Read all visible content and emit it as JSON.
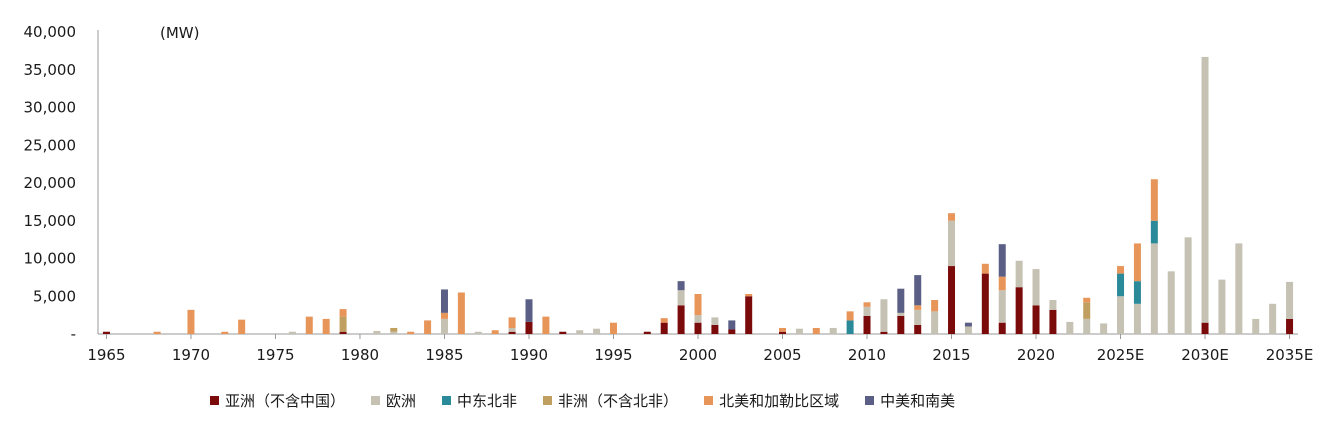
{
  "chart_data": {
    "type": "bar",
    "stacked": true,
    "unit_label": "(MW)",
    "ylim": [
      0,
      40000
    ],
    "y_ticks": [
      0,
      5000,
      10000,
      15000,
      20000,
      25000,
      30000,
      35000,
      40000
    ],
    "y_tick_labels": [
      "-",
      "5,000",
      "10,000",
      "15,000",
      "20,000",
      "25,000",
      "30,000",
      "35,000",
      "40,000"
    ],
    "x_tick_labels": [
      {
        "index": 0,
        "label": "1965"
      },
      {
        "index": 5,
        "label": "1970"
      },
      {
        "index": 10,
        "label": "1975"
      },
      {
        "index": 15,
        "label": "1980"
      },
      {
        "index": 20,
        "label": "1985"
      },
      {
        "index": 25,
        "label": "1990"
      },
      {
        "index": 30,
        "label": "1995"
      },
      {
        "index": 35,
        "label": "2000"
      },
      {
        "index": 40,
        "label": "2005"
      },
      {
        "index": 45,
        "label": "2010"
      },
      {
        "index": 50,
        "label": "2015"
      },
      {
        "index": 55,
        "label": "2020"
      },
      {
        "index": 60,
        "label": "2025E"
      },
      {
        "index": 65,
        "label": "2030E"
      },
      {
        "index": 70,
        "label": "2035E"
      }
    ],
    "categories": [
      "1965",
      "1966",
      "1967",
      "1968",
      "1969",
      "1970",
      "1971",
      "1972",
      "1973",
      "1974",
      "1975",
      "1976",
      "1977",
      "1978",
      "1979",
      "1980",
      "1981",
      "1982",
      "1983",
      "1984",
      "1985",
      "1986",
      "1987",
      "1988",
      "1989",
      "1990",
      "1991",
      "1992",
      "1993",
      "1994",
      "1995",
      "1996",
      "1997",
      "1998",
      "1999",
      "2000",
      "2001",
      "2002",
      "2003",
      "2004",
      "2005",
      "2006",
      "2007",
      "2008",
      "2009",
      "2010",
      "2011",
      "2012",
      "2013",
      "2014",
      "2015",
      "2016",
      "2017",
      "2018",
      "2019",
      "2020",
      "2021",
      "2022",
      "2023",
      "2024",
      "2025E",
      "2026E",
      "2027E",
      "2028E",
      "2029E",
      "2030E",
      "2031E",
      "2032E",
      "2033E",
      "2034E",
      "2035E"
    ],
    "series": [
      {
        "name": "亚洲（不含中国）",
        "color": "#7b0b0b",
        "values": [
          300,
          0,
          0,
          0,
          0,
          0,
          0,
          0,
          0,
          0,
          0,
          0,
          0,
          0,
          300,
          0,
          0,
          0,
          0,
          0,
          0,
          0,
          0,
          0,
          300,
          1600,
          0,
          300,
          0,
          0,
          0,
          0,
          300,
          1500,
          3800,
          1500,
          1200,
          600,
          5000,
          0,
          300,
          0,
          0,
          0,
          0,
          2400,
          300,
          2400,
          1200,
          0,
          9000,
          0,
          8000,
          1500,
          6200,
          3800,
          3200,
          0,
          0,
          0,
          0,
          0,
          0,
          0,
          0,
          1500,
          0,
          0,
          0,
          0,
          2000
        ]
      },
      {
        "name": "欧洲",
        "color": "#c5c1b3",
        "values": [
          0,
          0,
          0,
          0,
          0,
          0,
          0,
          0,
          0,
          0,
          0,
          300,
          0,
          0,
          0,
          0,
          400,
          300,
          0,
          0,
          2000,
          0,
          300,
          0,
          500,
          0,
          0,
          0,
          500,
          700,
          0,
          0,
          0,
          0,
          2000,
          1000,
          1000,
          0,
          0,
          0,
          0,
          700,
          0,
          800,
          0,
          1200,
          4300,
          400,
          2000,
          3000,
          6000,
          1000,
          0,
          4300,
          3500,
          4800,
          1300,
          1600,
          2000,
          1400,
          5000,
          4000,
          12000,
          8300,
          12800,
          35200,
          7200,
          12000,
          2000,
          4000,
          4900
        ]
      },
      {
        "name": "中东北非",
        "color": "#2a8a9a",
        "values": [
          0,
          0,
          0,
          0,
          0,
          0,
          0,
          0,
          0,
          0,
          0,
          0,
          0,
          0,
          0,
          0,
          0,
          0,
          0,
          0,
          0,
          0,
          0,
          0,
          0,
          0,
          0,
          0,
          0,
          0,
          0,
          0,
          0,
          0,
          0,
          0,
          0,
          0,
          0,
          0,
          0,
          0,
          0,
          0,
          1800,
          0,
          0,
          0,
          0,
          0,
          0,
          0,
          0,
          0,
          0,
          0,
          0,
          0,
          0,
          0,
          3000,
          3000,
          3000,
          0,
          0,
          0,
          0,
          0,
          0,
          0,
          0
        ]
      },
      {
        "name": "非洲（不含北非）",
        "color": "#c0a060",
        "values": [
          0,
          0,
          0,
          0,
          0,
          0,
          0,
          0,
          0,
          0,
          0,
          0,
          0,
          0,
          2000,
          0,
          0,
          500,
          0,
          0,
          0,
          0,
          0,
          0,
          0,
          0,
          0,
          0,
          0,
          0,
          0,
          0,
          0,
          0,
          0,
          0,
          0,
          0,
          0,
          0,
          0,
          0,
          0,
          0,
          0,
          0,
          0,
          0,
          0,
          0,
          0,
          0,
          0,
          0,
          0,
          0,
          0,
          0,
          2200,
          0,
          0,
          0,
          0,
          0,
          0,
          0,
          0,
          0,
          0,
          0,
          0
        ]
      },
      {
        "name": "北美和加勒比区域",
        "color": "#e8955a",
        "values": [
          0,
          0,
          0,
          300,
          0,
          3200,
          0,
          300,
          1900,
          0,
          0,
          0,
          2300,
          2000,
          1000,
          0,
          0,
          0,
          300,
          1800,
          800,
          5500,
          0,
          500,
          1400,
          0,
          2300,
          0,
          0,
          0,
          1500,
          0,
          0,
          600,
          0,
          2800,
          0,
          0,
          300,
          0,
          500,
          0,
          800,
          0,
          1200,
          600,
          0,
          0,
          600,
          1500,
          1000,
          0,
          1300,
          1800,
          0,
          0,
          0,
          0,
          600,
          0,
          1000,
          5000,
          5500,
          0,
          0,
          0,
          0,
          0,
          0,
          0,
          0
        ]
      },
      {
        "name": "中美和南美",
        "color": "#5b5f86",
        "values": [
          0,
          0,
          0,
          0,
          0,
          0,
          0,
          0,
          0,
          0,
          0,
          0,
          0,
          0,
          0,
          0,
          0,
          0,
          0,
          0,
          3100,
          0,
          0,
          0,
          0,
          3000,
          0,
          0,
          0,
          0,
          0,
          0,
          0,
          0,
          1200,
          0,
          0,
          1200,
          0,
          0,
          0,
          0,
          0,
          0,
          0,
          0,
          0,
          3200,
          4000,
          0,
          0,
          500,
          0,
          4300,
          0,
          0,
          0,
          0,
          0,
          0,
          0,
          0,
          0,
          0,
          0,
          0,
          0,
          0,
          0,
          0,
          0
        ]
      }
    ]
  }
}
